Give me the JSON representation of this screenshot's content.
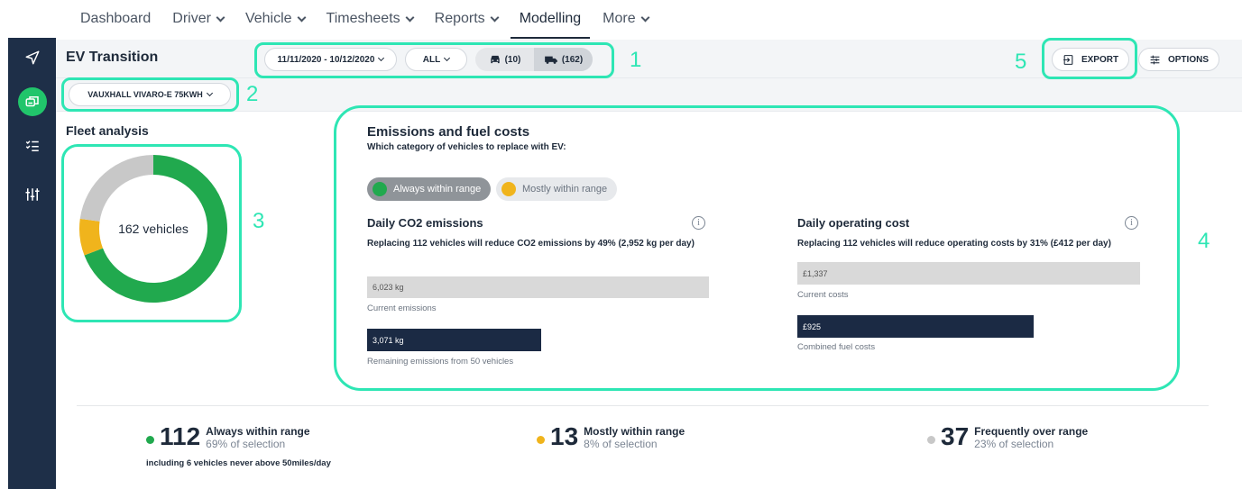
{
  "nav": {
    "items": [
      {
        "label": "Dashboard",
        "dropdown": false
      },
      {
        "label": "Driver",
        "dropdown": true
      },
      {
        "label": "Vehicle",
        "dropdown": true
      },
      {
        "label": "Timesheets",
        "dropdown": true
      },
      {
        "label": "Reports",
        "dropdown": true
      },
      {
        "label": "Modelling",
        "dropdown": false,
        "active": true
      },
      {
        "label": "More",
        "dropdown": true
      }
    ]
  },
  "sidebar": {
    "icons": [
      "navigation-arrow-icon",
      "vehicles-stack-icon",
      "checklist-icon",
      "sliders-icon"
    ]
  },
  "toolbar": {
    "title": "EV Transition",
    "date_range": "11/11/2020 - 10/12/2020",
    "filter_all": "ALL",
    "cars_count": "(10)",
    "vans_count": "(162)",
    "export_label": "EXPORT",
    "options_label": "OPTIONS"
  },
  "vehicle_select": {
    "value": "VAUXHALL VIVARO-E 75KWH"
  },
  "annotations": {
    "n1": "1",
    "n2": "2",
    "n3": "3",
    "n4": "4",
    "n5": "5"
  },
  "fleet": {
    "title": "Fleet analysis",
    "center_label": "162 vehicles"
  },
  "chart_data": {
    "type": "pie",
    "categories": [
      "Always within range",
      "Mostly within range",
      "Frequently over range"
    ],
    "values": [
      112,
      13,
      37
    ],
    "colors": [
      "#21a94e",
      "#f0b41c",
      "#c8c8c8"
    ],
    "donut": true
  },
  "emissions": {
    "title": "Emissions and fuel costs",
    "subtitle": "Which category of vehicles to replace with EV:",
    "toggle_always": "Always within range",
    "toggle_mostly": "Mostly within range",
    "co2": {
      "title": "Daily CO2 emissions",
      "sentence_pre": "Replacing 112 vehicles will reduce CO2 emissions by ",
      "sentence_bold": "49%",
      "sentence_post": " (2,952 kg per day)",
      "current_value": "6,023 kg",
      "current_caption": "Current emissions",
      "remaining_value": "3,071 kg",
      "remaining_caption": "Remaining emissions from 50 vehicles",
      "remaining_fraction": 0.51
    },
    "cost": {
      "title": "Daily operating cost",
      "sentence_pre": "Replacing 112 vehicles will reduce operating costs by ",
      "sentence_bold": "31%",
      "sentence_post": " (£412 per day)",
      "current_value": "£1,337",
      "current_caption": "Current costs",
      "combined_value": "£925",
      "combined_caption": "Combined fuel costs",
      "combined_fraction": 0.69
    }
  },
  "summary": [
    {
      "num": "112",
      "label": "Always within range",
      "sub": "69% of selection",
      "note": "including 6 vehicles never above 50miles/day",
      "color": "#21a94e"
    },
    {
      "num": "13",
      "label": "Mostly within range",
      "sub": "8% of selection",
      "color": "#f0b41c"
    },
    {
      "num": "37",
      "label": "Frequently over range",
      "sub": "23% of selection",
      "color": "#c8c8c8"
    }
  ],
  "colors": {
    "accent": "#2ee6b4",
    "green": "#21a94e",
    "amber": "#f0b41c",
    "navy": "#1b2a44"
  }
}
